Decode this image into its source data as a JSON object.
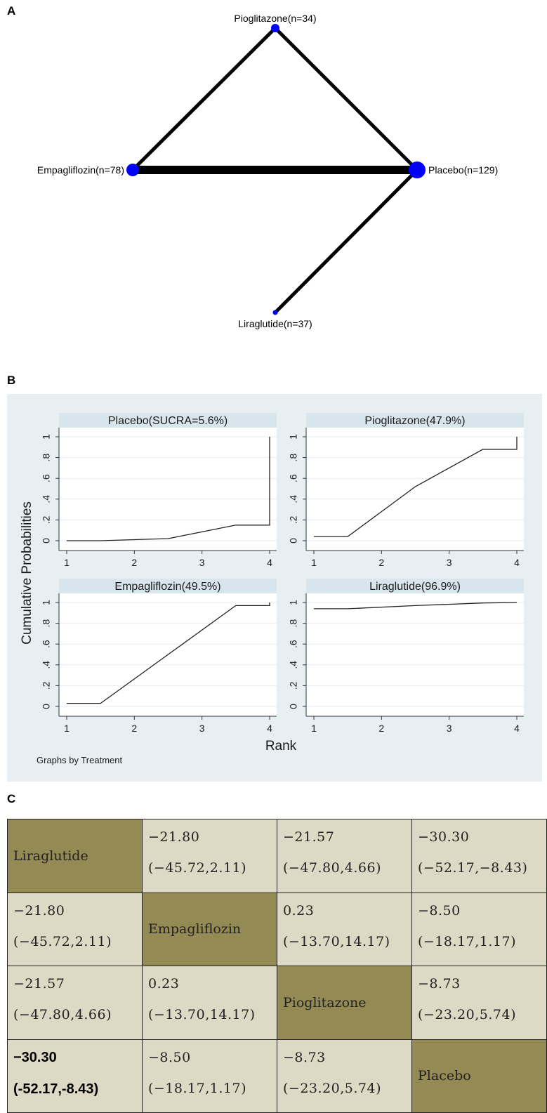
{
  "panel_labels": {
    "a": "A",
    "b": "B",
    "c": "C"
  },
  "colors": {
    "node": "#0000ff",
    "edge": "#000000",
    "chart_bg": "#e8eff3",
    "facet_header": "#d9e5ec",
    "table_diag": "#948a54",
    "table_cell": "#ddd9c4"
  },
  "network": {
    "nodes": [
      {
        "label": "Pioglitazone(n=34)",
        "n": 34
      },
      {
        "label": "Empagliflozin(n=78)",
        "n": 78
      },
      {
        "label": "Placebo(n=129)",
        "n": 129
      },
      {
        "label": "Liraglutide(n=37)",
        "n": 37
      }
    ],
    "edges": [
      {
        "from": "Pioglitazone",
        "to": "Empagliflozin",
        "weight": "thin"
      },
      {
        "from": "Pioglitazone",
        "to": "Placebo",
        "weight": "thin"
      },
      {
        "from": "Empagliflozin",
        "to": "Placebo",
        "weight": "thick"
      },
      {
        "from": "Placebo",
        "to": "Liraglutide",
        "weight": "thin"
      }
    ]
  },
  "chart_data": {
    "type": "line",
    "ylabel": "Cumulative Probabilities",
    "xlabel": "Rank",
    "note": "Graphs by Treatment",
    "x_ticks": [
      "1",
      "2",
      "3",
      "4"
    ],
    "y_ticks": [
      "0",
      ".2",
      ".4",
      ".6",
      ".8",
      "1"
    ],
    "xlim": [
      1,
      4
    ],
    "ylim": [
      0,
      1
    ],
    "grid": true,
    "panels": [
      {
        "title": "Placebo(SUCRA=5.6%)",
        "x": [
          1,
          1.5,
          2.5,
          3.5,
          4,
          4
        ],
        "y": [
          0,
          0,
          0.02,
          0.15,
          0.15,
          1
        ]
      },
      {
        "title": "Pioglitazone(47.9%)",
        "x": [
          1,
          1.5,
          2.5,
          3.5,
          4,
          4
        ],
        "y": [
          0.04,
          0.04,
          0.52,
          0.88,
          0.88,
          1
        ]
      },
      {
        "title": "Empagliflozin(49.5%)",
        "x": [
          1,
          1.5,
          2.5,
          3.5,
          4,
          4
        ],
        "y": [
          0.03,
          0.03,
          0.5,
          0.97,
          0.97,
          1
        ]
      },
      {
        "title": "Liraglutide(96.9%)",
        "x": [
          1,
          1.5,
          2.5,
          3.5,
          4
        ],
        "y": [
          0.94,
          0.94,
          0.97,
          0.995,
          1
        ]
      }
    ]
  },
  "league_table": {
    "rows": [
      [
        {
          "diag": true,
          "text": "Liraglutide"
        },
        {
          "est": "−21.80",
          "ci": "(−45.72,2.11)"
        },
        {
          "est": "−21.57",
          "ci": "(−47.80,4.66)"
        },
        {
          "est": "−30.30",
          "ci": "(−52.17,−8.43)"
        }
      ],
      [
        {
          "est": "−21.80",
          "ci": "(−45.72,2.11)"
        },
        {
          "diag": true,
          "text": "Empagliflozin"
        },
        {
          "est": "0.23",
          "ci": "(−13.70,14.17)"
        },
        {
          "est": "−8.50",
          "ci": "(−18.17,1.17)"
        }
      ],
      [
        {
          "est": "−21.57",
          "ci": "(−47.80,4.66)"
        },
        {
          "est": "0.23",
          "ci": "(−13.70,14.17)"
        },
        {
          "diag": true,
          "text": "Pioglitazone"
        },
        {
          "est": "−8.73",
          "ci": "(−23.20,5.74)"
        }
      ],
      [
        {
          "est": "−30.30",
          "ci": "(-52.17,-8.43)",
          "bold": true
        },
        {
          "est": "−8.50",
          "ci": "(−18.17,1.17)"
        },
        {
          "est": "−8.73",
          "ci": "(−23.20,5.74)"
        },
        {
          "diag": true,
          "text": "Placebo"
        }
      ]
    ]
  }
}
